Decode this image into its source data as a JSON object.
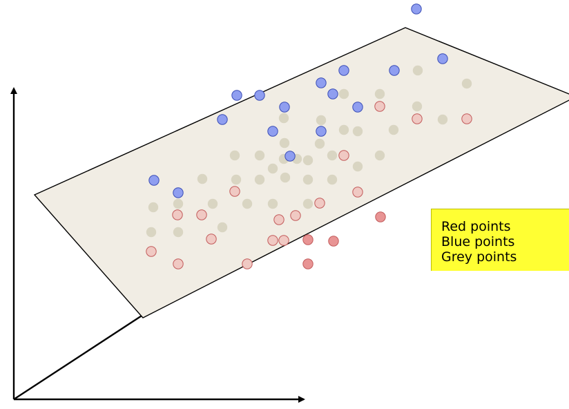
{
  "legend": {
    "lines": [
      "Red points",
      "Blue points",
      "Grey points"
    ]
  },
  "colors": {
    "plane_fill": "#f1ede4",
    "red_point": "#e89494",
    "red_point_faded": "#f0c9c3",
    "blue_point": "#8f9ef0",
    "grey_point": "#d9d5c2",
    "legend_bg": "#ffff33",
    "axis": "#000000"
  }
}
